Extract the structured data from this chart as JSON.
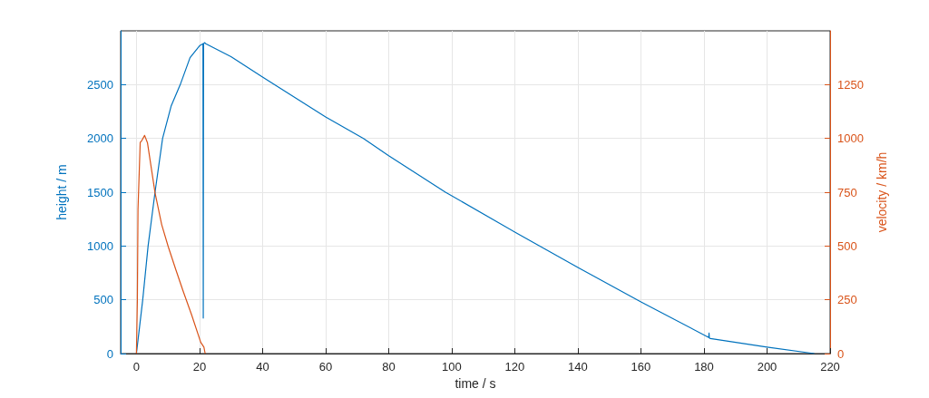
{
  "chart_data": {
    "type": "line",
    "xlabel": "time / s",
    "ylabel": "height / m",
    "y2label": "velocity / km/h",
    "xlim": [
      -5,
      220
    ],
    "xticks": [
      0,
      20,
      40,
      60,
      80,
      100,
      120,
      140,
      160,
      180,
      200,
      220
    ],
    "ylim": [
      0,
      3000
    ],
    "yticks": [
      0,
      500,
      1000,
      1500,
      2000,
      2500
    ],
    "y2lim": [
      0,
      1500
    ],
    "y2ticks": [
      0,
      250,
      500,
      750,
      1000,
      1250
    ],
    "grid": true,
    "marker": "none",
    "line_style": "solid",
    "series": [
      {
        "color": "#0072bd",
        "axis": "y",
        "x": [
          0,
          1,
          2,
          3.7,
          5.9,
          8.3,
          11,
          13.9,
          17,
          20,
          21.1,
          21.2,
          21.3,
          21.6,
          22,
          30,
          40,
          60,
          72,
          80,
          98,
          120,
          140,
          160,
          181.5,
          181.6,
          181.7,
          182,
          200,
          215
        ],
        "values": [
          0,
          250,
          500,
          1000,
          1500,
          2000,
          2300,
          2500,
          2750,
          2860,
          2880,
          330,
          2880,
          2890,
          2880,
          2760,
          2570,
          2200,
          2000,
          1840,
          1500,
          1130,
          800,
          480,
          150,
          190,
          145,
          140,
          60,
          0
        ]
      },
      {
        "color": "#d95319",
        "axis": "y2",
        "x": [
          0,
          0.3,
          0.5,
          1.2,
          1.7,
          2.6,
          3.5,
          5.9,
          8,
          10.1,
          12.5,
          14.8,
          17.5,
          20.4,
          21.4,
          21.8
        ],
        "values": [
          0,
          249,
          670,
          981,
          990,
          1014,
          980,
          747,
          600,
          496,
          390,
          291,
          180,
          52,
          30,
          0
        ]
      }
    ]
  }
}
